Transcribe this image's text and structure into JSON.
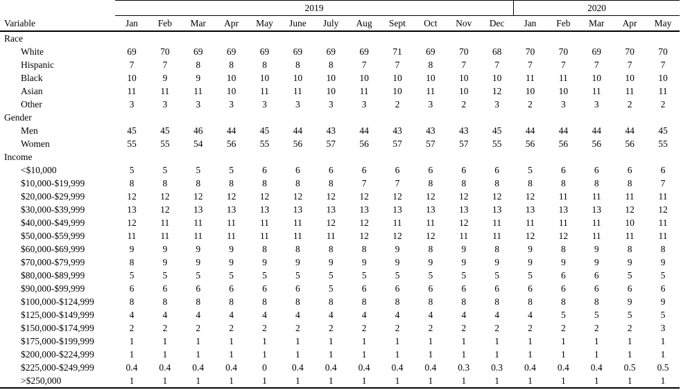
{
  "table": {
    "variable_header": "Variable",
    "year_groups": [
      {
        "label": "2019",
        "span": 12
      },
      {
        "label": "2020",
        "span": 5
      }
    ],
    "months": [
      "Jan",
      "Feb",
      "Mar",
      "Apr",
      "May",
      "June",
      "July",
      "Aug",
      "Sept",
      "Oct",
      "Nov",
      "Dec",
      "Jan",
      "Feb",
      "Mar",
      "Apr",
      "May"
    ],
    "rows": [
      {
        "type": "section",
        "label": "Race"
      },
      {
        "type": "data",
        "label": "White",
        "values": [
          69,
          70,
          69,
          69,
          69,
          69,
          69,
          69,
          71,
          69,
          70,
          68,
          70,
          70,
          69,
          70,
          70
        ]
      },
      {
        "type": "data",
        "label": "Hispanic",
        "values": [
          7,
          7,
          8,
          8,
          8,
          8,
          8,
          7,
          7,
          8,
          7,
          7,
          7,
          7,
          7,
          7,
          7
        ]
      },
      {
        "type": "data",
        "label": "Black",
        "values": [
          10,
          9,
          9,
          10,
          10,
          10,
          10,
          10,
          10,
          10,
          10,
          10,
          11,
          11,
          10,
          10,
          10
        ]
      },
      {
        "type": "data",
        "label": "Asian",
        "values": [
          11,
          11,
          11,
          10,
          11,
          11,
          10,
          11,
          10,
          11,
          10,
          12,
          10,
          10,
          11,
          11,
          11
        ]
      },
      {
        "type": "data",
        "label": "Other",
        "values": [
          3,
          3,
          3,
          3,
          3,
          3,
          3,
          3,
          2,
          3,
          2,
          3,
          2,
          3,
          3,
          2,
          2
        ]
      },
      {
        "type": "section",
        "label": "Gender"
      },
      {
        "type": "data",
        "label": "Men",
        "values": [
          45,
          45,
          46,
          44,
          45,
          44,
          43,
          44,
          43,
          43,
          43,
          45,
          44,
          44,
          44,
          44,
          45
        ]
      },
      {
        "type": "data",
        "label": "Women",
        "values": [
          55,
          55,
          54,
          56,
          55,
          56,
          57,
          56,
          57,
          57,
          57,
          55,
          56,
          56,
          56,
          56,
          55
        ]
      },
      {
        "type": "section",
        "label": "Income"
      },
      {
        "type": "data",
        "label": "<$10,000",
        "values": [
          5,
          5,
          5,
          5,
          6,
          6,
          6,
          6,
          6,
          6,
          6,
          6,
          5,
          6,
          6,
          6,
          6
        ]
      },
      {
        "type": "data",
        "label": "$10,000-$19,999",
        "values": [
          8,
          8,
          8,
          8,
          8,
          8,
          8,
          7,
          7,
          8,
          8,
          8,
          8,
          8,
          8,
          8,
          7
        ]
      },
      {
        "type": "data",
        "label": "$20,000-$29,999",
        "values": [
          12,
          12,
          12,
          12,
          12,
          12,
          12,
          12,
          12,
          12,
          12,
          12,
          12,
          11,
          11,
          11,
          11
        ]
      },
      {
        "type": "data",
        "label": "$30,000-$39,999",
        "values": [
          13,
          12,
          13,
          13,
          13,
          13,
          13,
          13,
          13,
          13,
          13,
          13,
          13,
          13,
          13,
          12,
          12
        ]
      },
      {
        "type": "data",
        "label": "$40,000-$49,999",
        "values": [
          12,
          11,
          11,
          11,
          11,
          11,
          12,
          12,
          11,
          11,
          12,
          11,
          11,
          11,
          11,
          10,
          11
        ]
      },
      {
        "type": "data",
        "label": "$50,000-$59,999",
        "values": [
          11,
          11,
          11,
          11,
          11,
          11,
          11,
          12,
          12,
          12,
          11,
          11,
          12,
          12,
          11,
          11,
          11
        ]
      },
      {
        "type": "data",
        "label": "$60,000-$69,999",
        "values": [
          9,
          9,
          9,
          9,
          8,
          8,
          8,
          8,
          9,
          8,
          9,
          8,
          9,
          8,
          9,
          8,
          8
        ]
      },
      {
        "type": "data",
        "label": "$70,000-$79,999",
        "values": [
          8,
          9,
          9,
          9,
          9,
          9,
          9,
          9,
          9,
          9,
          9,
          9,
          9,
          9,
          9,
          9,
          9
        ]
      },
      {
        "type": "data",
        "label": "$80,000-$89,999",
        "values": [
          5,
          5,
          5,
          5,
          5,
          5,
          5,
          5,
          5,
          5,
          5,
          5,
          5,
          6,
          6,
          5,
          5
        ]
      },
      {
        "type": "data",
        "label": "$90,000-$99,999",
        "values": [
          6,
          6,
          6,
          6,
          6,
          6,
          5,
          6,
          6,
          6,
          6,
          6,
          6,
          6,
          6,
          6,
          6
        ]
      },
      {
        "type": "data",
        "label": "$100,000-$124,999",
        "values": [
          8,
          8,
          8,
          8,
          8,
          8,
          8,
          8,
          8,
          8,
          8,
          8,
          8,
          8,
          8,
          9,
          9
        ]
      },
      {
        "type": "data",
        "label": "$125,000-$149,999",
        "values": [
          4,
          4,
          4,
          4,
          4,
          4,
          4,
          4,
          4,
          4,
          4,
          4,
          4,
          5,
          5,
          5,
          5
        ]
      },
      {
        "type": "data",
        "label": "$150,000-$174,999",
        "values": [
          2,
          2,
          2,
          2,
          2,
          2,
          2,
          2,
          2,
          2,
          2,
          2,
          2,
          2,
          2,
          2,
          3
        ]
      },
      {
        "type": "data",
        "label": "$175,000-$199,999",
        "values": [
          1,
          1,
          1,
          1,
          1,
          1,
          1,
          1,
          1,
          1,
          1,
          1,
          1,
          1,
          1,
          1,
          1
        ]
      },
      {
        "type": "data",
        "label": "$200,000-$224,999",
        "values": [
          1,
          1,
          1,
          1,
          1,
          1,
          1,
          1,
          1,
          1,
          1,
          1,
          1,
          1,
          1,
          1,
          1
        ]
      },
      {
        "type": "data",
        "label": "$225,000-$249,999",
        "values": [
          0.4,
          0.4,
          0.4,
          0.4,
          0,
          0.4,
          0.4,
          0.4,
          0.4,
          0.4,
          0.3,
          0.3,
          0.4,
          0.4,
          0.4,
          0.5,
          0.5
        ]
      },
      {
        "type": "data",
        "label": ">$250,000",
        "values": [
          1,
          1,
          1,
          1,
          1,
          1,
          1,
          1,
          1,
          1,
          1,
          1,
          1,
          1,
          1,
          1,
          1
        ]
      }
    ]
  }
}
